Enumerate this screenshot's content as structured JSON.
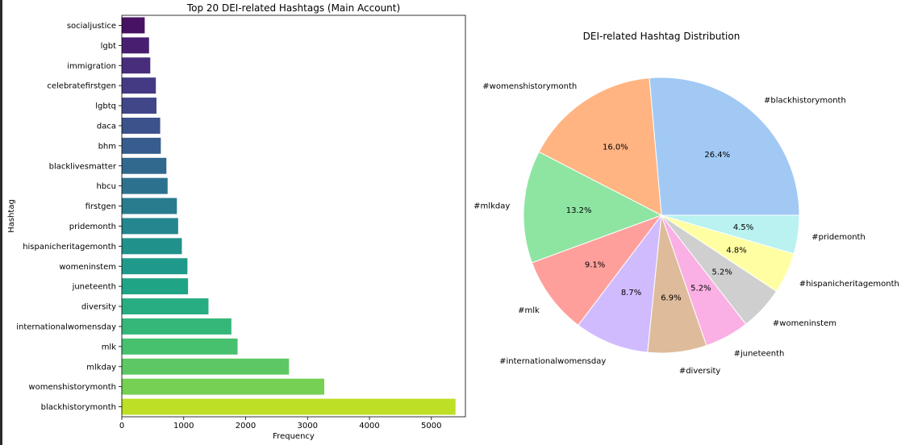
{
  "chart_data": [
    {
      "type": "bar",
      "orientation": "horizontal",
      "title": "Top 20 DEI-related Hashtags (Main Account)",
      "xlabel": "Frequency",
      "ylabel": "Hashtag",
      "xlim": [
        0,
        5550
      ],
      "xticks": [
        0,
        1000,
        2000,
        3000,
        4000,
        5000
      ],
      "grid": false,
      "palette": "viridis",
      "categories": [
        "socialjustice",
        "lgbt",
        "immigration",
        "celebratefirstgen",
        "lgbtq",
        "daca",
        "bhm",
        "blacklivesmatter",
        "hbcu",
        "firstgen",
        "pridemonth",
        "hispanicheritagemonth",
        "womeninstem",
        "juneteenth",
        "diversity",
        "internationalwomensday",
        "mlk",
        "mlkday",
        "womenshistorymonth",
        "blackhistorymonth"
      ],
      "values": [
        370,
        440,
        460,
        550,
        560,
        620,
        630,
        720,
        740,
        890,
        910,
        970,
        1060,
        1070,
        1400,
        1770,
        1870,
        2700,
        3270,
        5390
      ],
      "colors": [
        "#471164",
        "#481f70",
        "#472d7b",
        "#443a83",
        "#404688",
        "#3b528b",
        "#365d8d",
        "#31688e",
        "#2c728e",
        "#287c8e",
        "#24868e",
        "#21918c",
        "#1f9a8a",
        "#20a486",
        "#27ad81",
        "#35b779",
        "#47c16e",
        "#5dc863",
        "#75d054",
        "#bddf26"
      ]
    },
    {
      "type": "pie",
      "title": "DEI-related Hashtag Distribution",
      "labels": [
        "#blackhistorymonth",
        "#womenshistorymonth",
        "#mlkday",
        "#mlk",
        "#internationalwomensday",
        "#diversity",
        "#juneteenth",
        "#womeninstem",
        "#hispanicheritagemonth",
        "#pridemonth"
      ],
      "values": [
        26.4,
        16.0,
        13.2,
        9.1,
        8.7,
        6.9,
        5.2,
        5.2,
        4.8,
        4.5
      ],
      "pct_labels": [
        "26.4%",
        "16.0%",
        "13.2%",
        "9.1%",
        "8.7%",
        "6.9%",
        "5.2%",
        "5.2%",
        "4.8%",
        "4.5%"
      ],
      "colors": [
        "#a1c9f4",
        "#ffb482",
        "#8de5a1",
        "#ff9f9b",
        "#d0bbff",
        "#debb9b",
        "#fab0e4",
        "#cfcfcf",
        "#fffea3",
        "#b9f2f0"
      ],
      "start_angle_deg": 0,
      "direction": "counterclockwise",
      "legend": "none"
    }
  ]
}
